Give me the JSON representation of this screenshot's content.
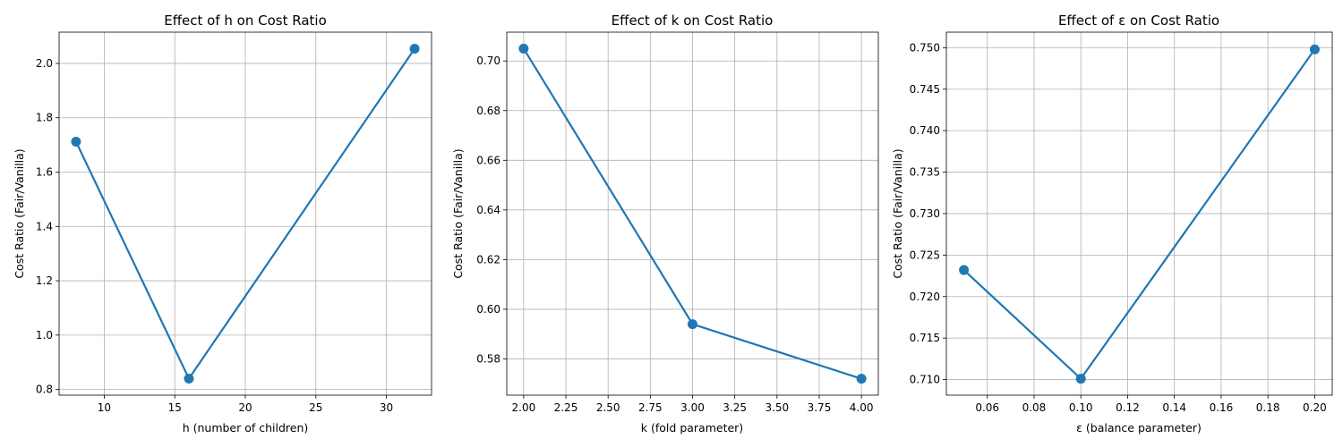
{
  "chart_data": [
    {
      "type": "line",
      "title": "Effect of h on Cost Ratio",
      "xlabel": "h (number of children)",
      "ylabel": "Cost Ratio (Fair/Vanilla)",
      "xlim": [
        6.8,
        33.2
      ],
      "ylim": [
        0.779,
        2.115
      ],
      "xticks": [
        10,
        15,
        20,
        25,
        30
      ],
      "xtick_labels": [
        "10",
        "15",
        "20",
        "25",
        "30"
      ],
      "yticks": [
        0.8,
        1.0,
        1.2,
        1.4,
        1.6,
        1.8,
        2.0
      ],
      "ytick_labels": [
        "0.8",
        "1.0",
        "1.2",
        "1.4",
        "1.6",
        "1.8",
        "2.0"
      ],
      "grid": true,
      "color": "#1f77b4",
      "x": [
        8,
        16,
        32
      ],
      "y": [
        1.712,
        0.84,
        2.054
      ]
    },
    {
      "type": "line",
      "title": "Effect of k on Cost Ratio",
      "xlabel": "k (fold parameter)",
      "ylabel": "Cost Ratio (Fair/Vanilla)",
      "xlim": [
        1.9,
        4.1
      ],
      "ylim": [
        0.5654,
        0.7116
      ],
      "xticks": [
        2.0,
        2.25,
        2.5,
        2.75,
        3.0,
        3.25,
        3.5,
        3.75,
        4.0
      ],
      "xtick_labels": [
        "2.00",
        "2.25",
        "2.50",
        "2.75",
        "3.00",
        "3.25",
        "3.50",
        "3.75",
        "4.00"
      ],
      "yticks": [
        0.58,
        0.6,
        0.62,
        0.64,
        0.66,
        0.68,
        0.7
      ],
      "ytick_labels": [
        "0.58",
        "0.60",
        "0.62",
        "0.64",
        "0.66",
        "0.68",
        "0.70"
      ],
      "grid": true,
      "color": "#1f77b4",
      "x": [
        2,
        3,
        4
      ],
      "y": [
        0.705,
        0.594,
        0.572
      ]
    },
    {
      "type": "line",
      "title": "Effect of ε on Cost Ratio",
      "xlabel": "ε (balance parameter)",
      "ylabel": "Cost Ratio (Fair/Vanilla)",
      "xlim": [
        0.0425,
        0.2075
      ],
      "ylim": [
        0.70812,
        0.75187
      ],
      "xticks": [
        0.06,
        0.08,
        0.1,
        0.12,
        0.14,
        0.16,
        0.18,
        0.2
      ],
      "xtick_labels": [
        "0.06",
        "0.08",
        "0.10",
        "0.12",
        "0.14",
        "0.16",
        "0.18",
        "0.20"
      ],
      "yticks": [
        0.71,
        0.715,
        0.72,
        0.725,
        0.73,
        0.735,
        0.74,
        0.745,
        0.75
      ],
      "ytick_labels": [
        "0.710",
        "0.715",
        "0.720",
        "0.725",
        "0.730",
        "0.735",
        "0.740",
        "0.745",
        "0.750"
      ],
      "grid": true,
      "color": "#1f77b4",
      "x": [
        0.05,
        0.1,
        0.2
      ],
      "y": [
        0.7232,
        0.7101,
        0.7498
      ]
    }
  ]
}
